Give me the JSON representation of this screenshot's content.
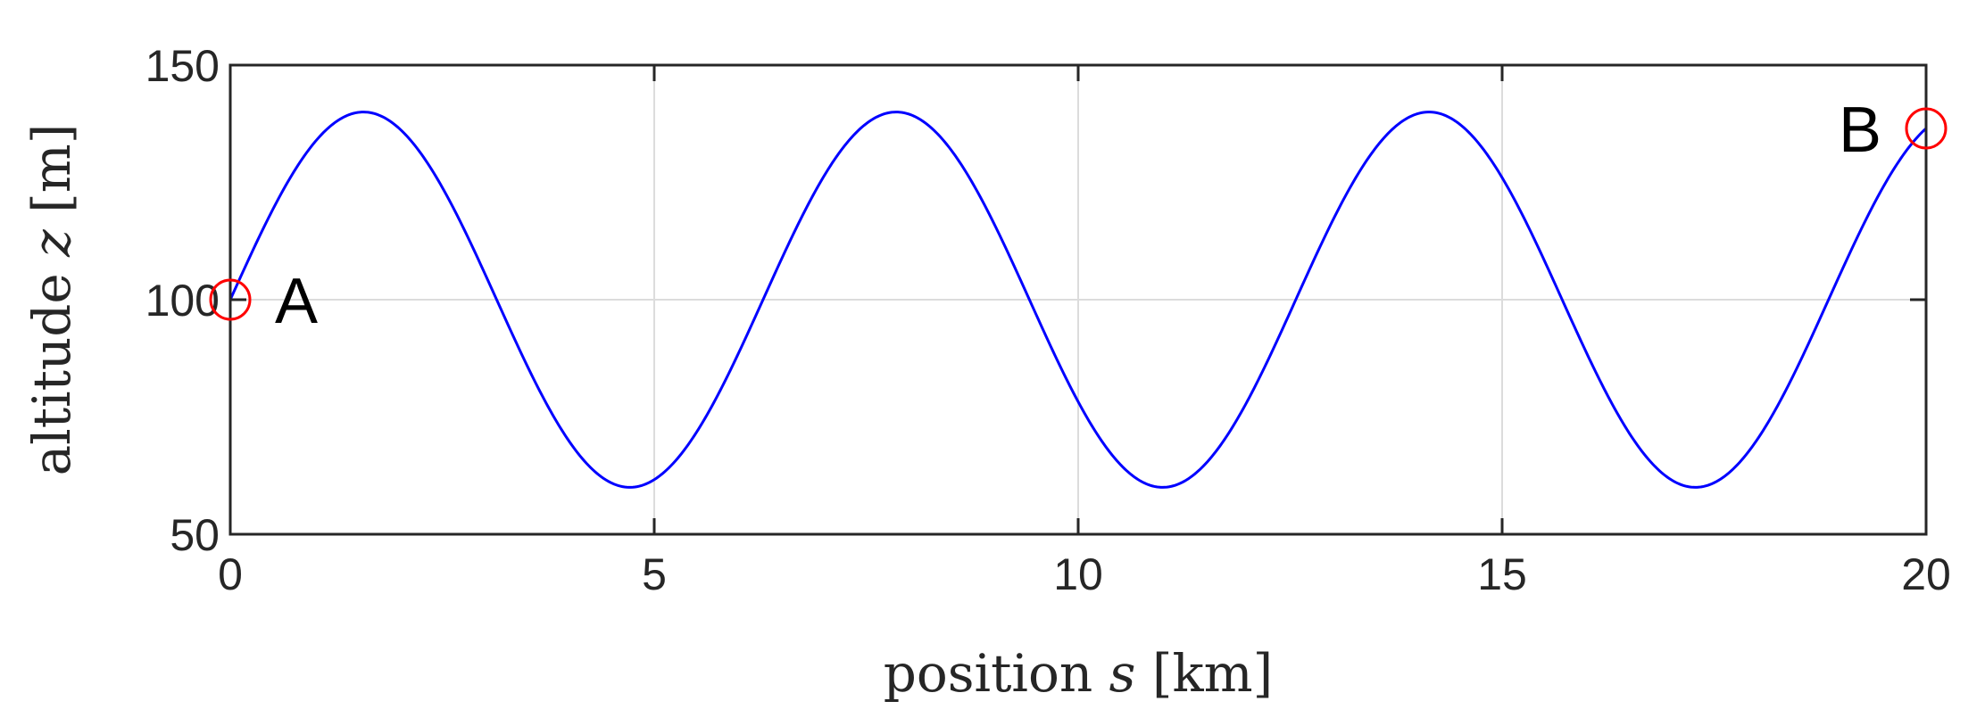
{
  "chart_data": {
    "type": "line",
    "title": "",
    "xlabel": {
      "prefix": "position ",
      "variable": "s",
      "unit": " [km]"
    },
    "ylabel": {
      "prefix": "altitude ",
      "variable": "z",
      "unit": " [m]"
    },
    "xlim": [
      0,
      20
    ],
    "ylim": [
      50,
      150
    ],
    "x_ticks": [
      "0",
      "5",
      "10",
      "15",
      "20"
    ],
    "y_ticks": [
      "50",
      "100",
      "150"
    ],
    "grid": true,
    "series": [
      {
        "color": "#0000ff",
        "function": "z = 100 + 40*sin(s)",
        "x": [
          0,
          0.5,
          1,
          1.5,
          1.57,
          2,
          2.5,
          3,
          3.5,
          4,
          4.5,
          4.71,
          5,
          5.5,
          6,
          6.5,
          7,
          7.5,
          7.85,
          8,
          8.5,
          9,
          9.5,
          10,
          10.5,
          10.99,
          11.5,
          12,
          12.5,
          13,
          13.5,
          14,
          14.14,
          14.5,
          15,
          15.5,
          16,
          16.5,
          17,
          17.28,
          17.5,
          18,
          18.5,
          19,
          19.5,
          20
        ],
        "y": [
          100,
          119.2,
          133.7,
          139.9,
          140,
          136.4,
          123.9,
          105.6,
          86,
          69.7,
          60.9,
          60,
          61.6,
          71.2,
          88.8,
          108.6,
          126.3,
          137.5,
          140,
          139.6,
          131.9,
          116.5,
          97,
          78.2,
          64.8,
          60,
          64.3,
          78.5,
          98.7,
          116.8,
          131.6,
          139.6,
          140,
          138.7,
          126,
          107.7,
          88.5,
          71.5,
          60.3,
          60,
          60.4,
          69,
          85.7,
          106,
          124.8,
          136.5
        ]
      }
    ],
    "markers": [
      {
        "label": "A",
        "x": 0,
        "y": 100,
        "color": "#ff0000"
      },
      {
        "label": "B",
        "x": 20,
        "y": 136.5,
        "color": "#ff0000"
      }
    ]
  }
}
